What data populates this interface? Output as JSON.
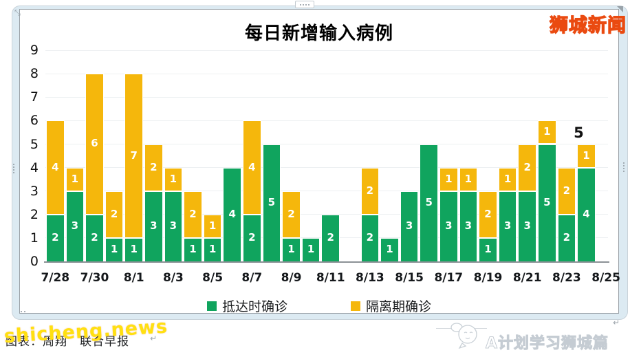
{
  "chart_data": {
    "type": "bar",
    "stacked": true,
    "title": "每日新增输入病例",
    "xlabel": "",
    "ylabel": "",
    "ylim": [
      0,
      9
    ],
    "y_ticks": [
      0,
      1,
      2,
      3,
      4,
      5,
      6,
      7,
      8,
      9
    ],
    "grid": true,
    "legend_position": "bottom",
    "x_tick_labels": [
      "7/28",
      "7/30",
      "8/1",
      "8/3",
      "8/5",
      "8/7",
      "8/9",
      "8/11",
      "8/13",
      "8/15",
      "8/17",
      "8/19",
      "8/21",
      "8/23",
      "8/25"
    ],
    "series": [
      {
        "name": "抵达时确诊",
        "color": "#10a45e"
      },
      {
        "name": "隔离期确诊",
        "color": "#f5b70c"
      }
    ],
    "days": [
      {
        "date": "7/28",
        "arrival": 2,
        "quarantine": 4
      },
      {
        "date": "7/29",
        "arrival": 3,
        "quarantine": 1
      },
      {
        "date": "7/30",
        "arrival": 2,
        "quarantine": 6
      },
      {
        "date": "7/31",
        "arrival": 1,
        "quarantine": 2
      },
      {
        "date": "8/1",
        "arrival": 1,
        "quarantine": 7
      },
      {
        "date": "8/2",
        "arrival": 3,
        "quarantine": 2
      },
      {
        "date": "8/3",
        "arrival": 3,
        "quarantine": 1
      },
      {
        "date": "8/4",
        "arrival": 1,
        "quarantine": 2
      },
      {
        "date": "8/5",
        "arrival": 1,
        "quarantine": 1
      },
      {
        "date": "8/6",
        "arrival": 4,
        "quarantine": 0
      },
      {
        "date": "8/7",
        "arrival": 2,
        "quarantine": 4
      },
      {
        "date": "8/8",
        "arrival": 5,
        "quarantine": 0
      },
      {
        "date": "8/9",
        "arrival": 1,
        "quarantine": 2
      },
      {
        "date": "8/10",
        "arrival": 1,
        "quarantine": 0
      },
      {
        "date": "8/11",
        "arrival": 2,
        "quarantine": 0
      },
      {
        "date": "8/12",
        "arrival": 0,
        "quarantine": 0
      },
      {
        "date": "8/13",
        "arrival": 2,
        "quarantine": 2
      },
      {
        "date": "8/14",
        "arrival": 1,
        "quarantine": 0
      },
      {
        "date": "8/15",
        "arrival": 3,
        "quarantine": 0
      },
      {
        "date": "8/16",
        "arrival": 5,
        "quarantine": 0
      },
      {
        "date": "8/17",
        "arrival": 3,
        "quarantine": 1
      },
      {
        "date": "8/18",
        "arrival": 3,
        "quarantine": 1
      },
      {
        "date": "8/19",
        "arrival": 1,
        "quarantine": 2
      },
      {
        "date": "8/20",
        "arrival": 3,
        "quarantine": 1
      },
      {
        "date": "8/21",
        "arrival": 3,
        "quarantine": 2
      },
      {
        "date": "8/22",
        "arrival": 5,
        "quarantine": 1
      },
      {
        "date": "8/23",
        "arrival": 2,
        "quarantine": 2
      },
      {
        "date": "8/24",
        "arrival": 4,
        "quarantine": 1
      }
    ],
    "annotation": {
      "text": "5",
      "above_date": "8/24"
    }
  },
  "legend": {
    "arrival_label": "抵达时确诊",
    "quarantine_label": "隔离期确诊"
  },
  "colors": {
    "arrival_green": "#10a45e",
    "quarantine_yellow": "#f5b70c",
    "watermark_yellow": "#ffe011",
    "watermark_red_outline": "#ea4a10",
    "frame_blue": "#dceaf2"
  },
  "watermarks": {
    "top_right": "狮城新闻",
    "bottom_left": "shicheng.news",
    "bottom_right": "A计划学习狮城篇"
  },
  "caption": {
    "text": "图表：周翔　联合早报",
    "return_mark": "↵"
  },
  "icons": {
    "four-dot-handle": "••••",
    "corner-resize-icon": "⤡",
    "return-mark-icon": "↵",
    "mascot-icon": "cartoon-mouse-face"
  }
}
